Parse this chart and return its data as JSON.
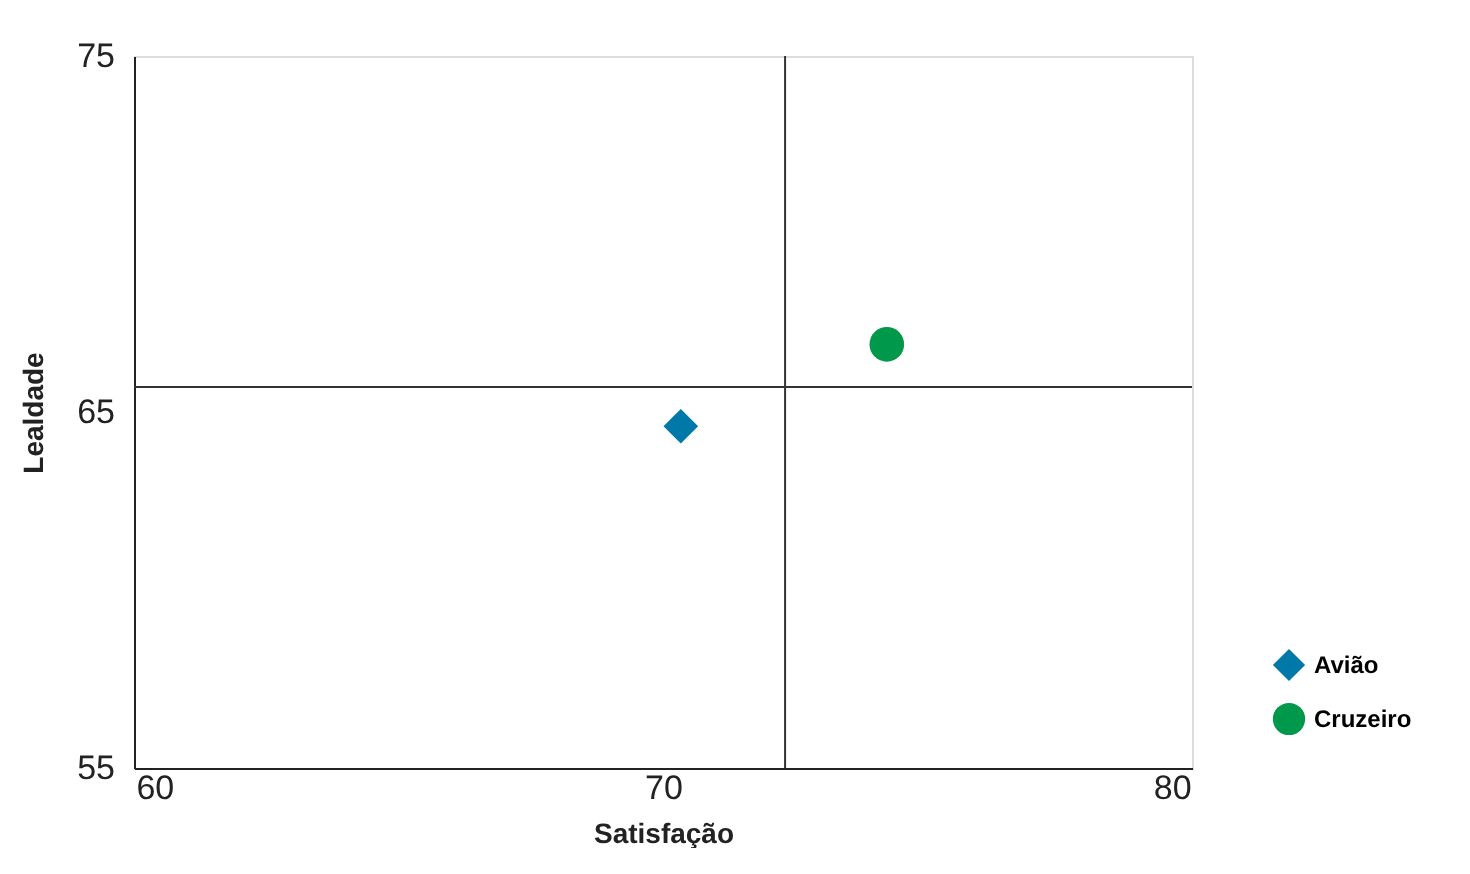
{
  "chart_data": {
    "type": "scatter",
    "xlabel": "Satisfação",
    "ylabel": "Lealdade",
    "xlim": [
      59.6,
      80.4
    ],
    "xticks": [
      60,
      70,
      80
    ],
    "ylim": [
      55,
      75
    ],
    "yticks": [
      55,
      65,
      75
    ],
    "grid": false,
    "legend": "bottom right",
    "series": [
      {
        "name": "Avião",
        "color": "#0079a8",
        "marker": "diamond",
        "x": [
          70.35
        ],
        "values": [
          64.6
        ]
      },
      {
        "name": "Cruzeiro",
        "color": "#00984a",
        "marker": "circle",
        "x": [
          74.4
        ],
        "values": [
          66.9
        ]
      }
    ],
    "ref_lines": [
      {
        "axis": "x",
        "value": 72.4,
        "color": "#333333"
      },
      {
        "axis": "y",
        "value": 65.7,
        "color": "#333333"
      }
    ]
  }
}
